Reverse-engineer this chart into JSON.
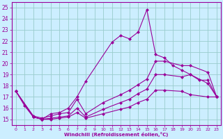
{
  "bg_color": "#cceeff",
  "grid_color": "#99cccc",
  "line_color": "#990099",
  "xlabel": "Windchill (Refroidissement éolien,°C)",
  "xlim": [
    -0.5,
    23.5
  ],
  "ylim": [
    14.5,
    25.5
  ],
  "yticks": [
    15,
    16,
    17,
    18,
    19,
    20,
    21,
    22,
    23,
    24,
    25
  ],
  "xticks": [
    0,
    1,
    2,
    3,
    4,
    5,
    6,
    7,
    8,
    9,
    10,
    11,
    12,
    13,
    14,
    15,
    16,
    17,
    18,
    19,
    20,
    21,
    22,
    23
  ],
  "curve1_x": [
    0,
    1,
    2,
    3,
    4,
    5,
    6,
    7,
    8,
    11,
    12,
    13,
    14,
    15,
    16,
    17,
    18,
    19,
    20,
    21,
    22,
    23
  ],
  "curve1_y": [
    17.5,
    16.2,
    15.2,
    15.0,
    15.5,
    15.6,
    16.0,
    17.0,
    18.4,
    21.9,
    22.5,
    22.2,
    22.8,
    24.8,
    20.8,
    20.5,
    19.8,
    19.4,
    19.0,
    18.5,
    18.5,
    17.0
  ],
  "curve2_x": [
    0,
    2,
    3,
    4,
    5,
    6,
    7,
    8,
    10,
    12,
    13,
    14,
    15,
    16,
    17,
    19,
    20,
    22,
    23
  ],
  "curve2_y": [
    17.5,
    15.3,
    15.1,
    15.3,
    15.5,
    15.6,
    16.8,
    15.5,
    16.5,
    17.2,
    17.6,
    18.1,
    18.6,
    20.2,
    20.2,
    19.8,
    19.8,
    19.2,
    17.0
  ],
  "curve3_x": [
    0,
    2,
    3,
    4,
    5,
    6,
    7,
    8,
    10,
    12,
    13,
    14,
    15,
    16,
    17,
    19,
    20,
    22,
    23
  ],
  "curve3_y": [
    17.5,
    15.2,
    15.0,
    15.1,
    15.2,
    15.3,
    16.0,
    15.2,
    15.9,
    16.5,
    16.8,
    17.3,
    17.7,
    19.0,
    19.0,
    18.8,
    19.0,
    18.2,
    17.0
  ],
  "curve4_x": [
    0,
    2,
    3,
    4,
    5,
    6,
    7,
    8,
    10,
    12,
    13,
    14,
    15,
    16,
    17,
    19,
    20,
    22,
    23
  ],
  "curve4_y": [
    17.5,
    15.2,
    15.0,
    15.0,
    15.1,
    15.2,
    15.6,
    15.1,
    15.5,
    15.9,
    16.1,
    16.5,
    16.8,
    17.6,
    17.6,
    17.5,
    17.2,
    17.0,
    17.0
  ]
}
